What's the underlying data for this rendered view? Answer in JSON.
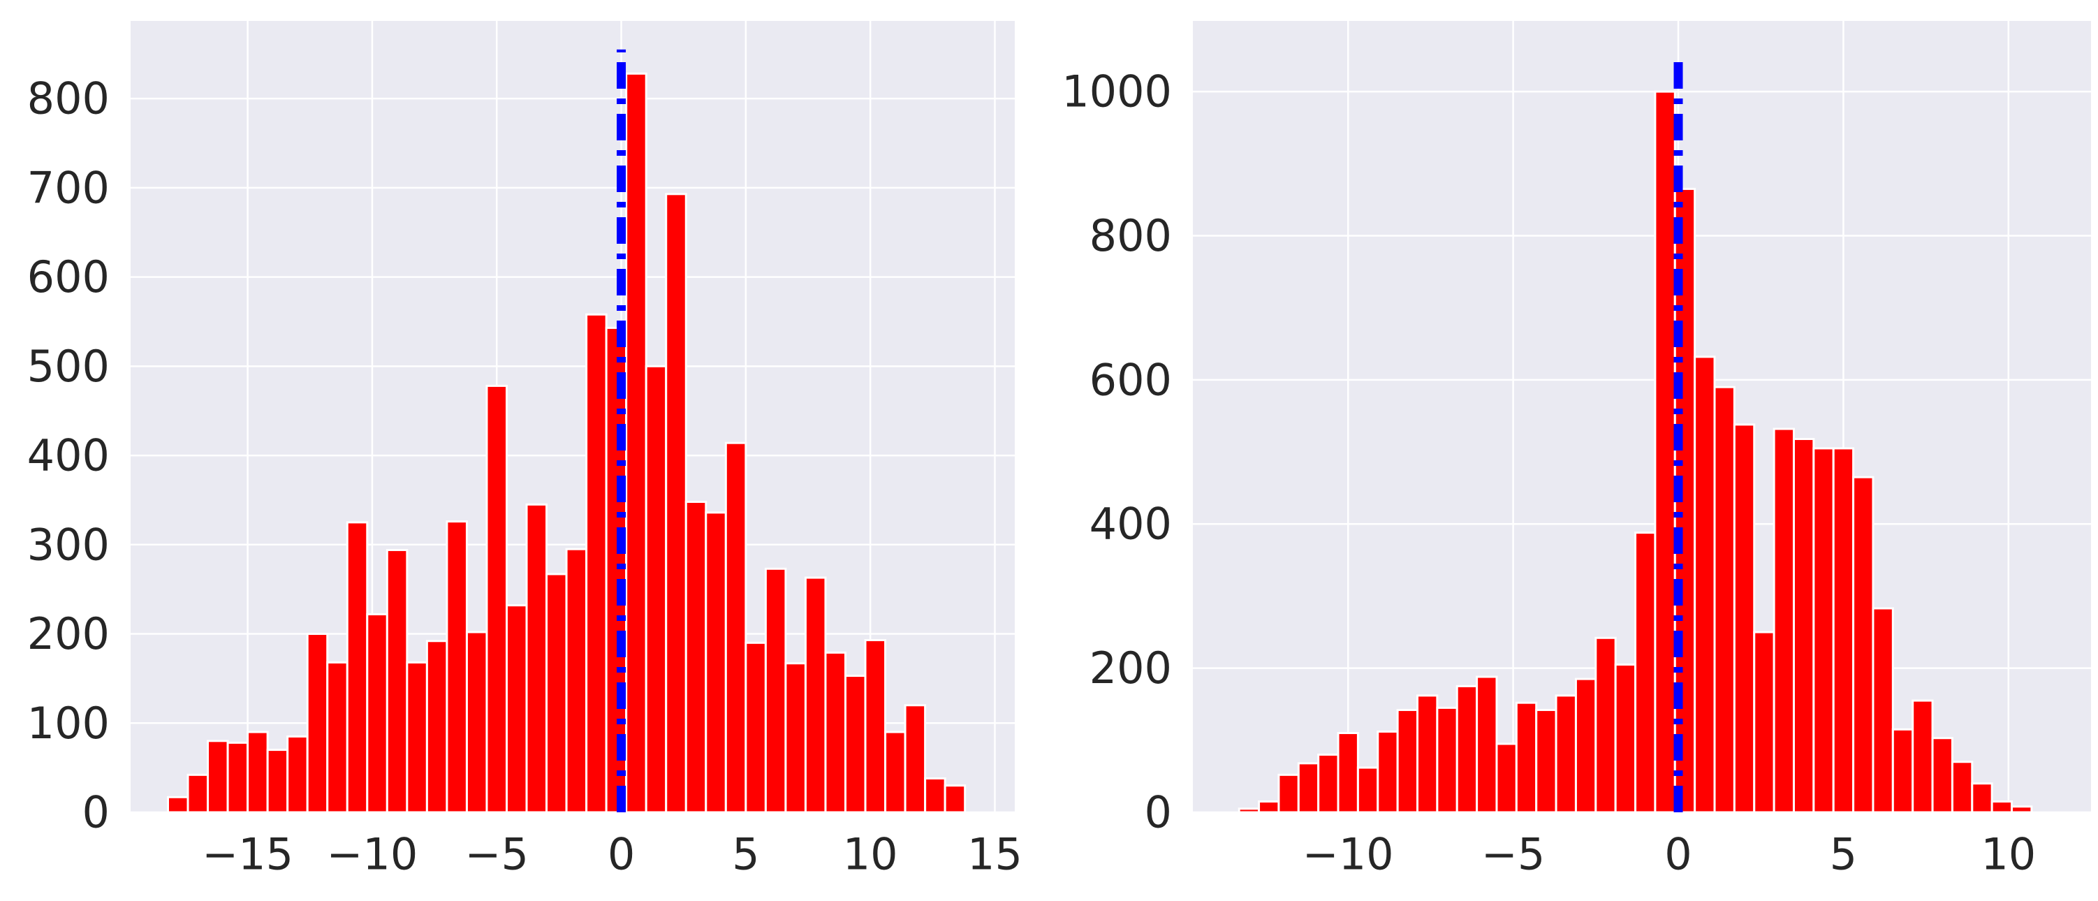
{
  "chart_data": [
    {
      "type": "bar",
      "title": "",
      "xlabel": "",
      "ylabel": "",
      "xlim": [
        -19.7,
        15.8
      ],
      "ylim": [
        0,
        887
      ],
      "grid": true,
      "xticks": [
        -15,
        -10,
        -5,
        0,
        5,
        10,
        15
      ],
      "yticks": [
        0,
        100,
        200,
        300,
        400,
        500,
        600,
        700,
        800
      ],
      "bin_start": -18.2,
      "bin_width": 0.8,
      "values": [
        17,
        42,
        80,
        78,
        90,
        70,
        85,
        200,
        168,
        325,
        222,
        294,
        168,
        192,
        326,
        202,
        478,
        232,
        345,
        267,
        295,
        558,
        543,
        828,
        500,
        693,
        348,
        336,
        414,
        190,
        273,
        167,
        263,
        179,
        153,
        193,
        90,
        120,
        38,
        30
      ],
      "vline": {
        "x": 0,
        "ymax": 855,
        "color": "#0000ff",
        "style": "dashdot"
      },
      "bar_color": "#ff0000"
    },
    {
      "type": "bar",
      "title": "",
      "xlabel": "",
      "ylabel": "",
      "xlim": [
        -14.7,
        12.5
      ],
      "ylim": [
        0,
        1098
      ],
      "grid": true,
      "xticks": [
        -10,
        -5,
        0,
        5,
        10
      ],
      "yticks": [
        0,
        200,
        400,
        600,
        800,
        1000
      ],
      "bin_start": -13.3,
      "bin_width": 0.6,
      "values": [
        5,
        15,
        52,
        68,
        80,
        110,
        62,
        112,
        142,
        162,
        145,
        175,
        188,
        95,
        152,
        142,
        162,
        185,
        242,
        205,
        388,
        1000,
        865,
        632,
        590,
        538,
        250,
        532,
        518,
        505,
        505,
        465,
        283,
        115,
        155,
        103,
        70,
        40,
        15,
        8
      ],
      "vline": {
        "x": 0,
        "ymax": 1050,
        "color": "#0000ff",
        "style": "dashdot"
      },
      "bar_color": "#ff0000"
    }
  ]
}
